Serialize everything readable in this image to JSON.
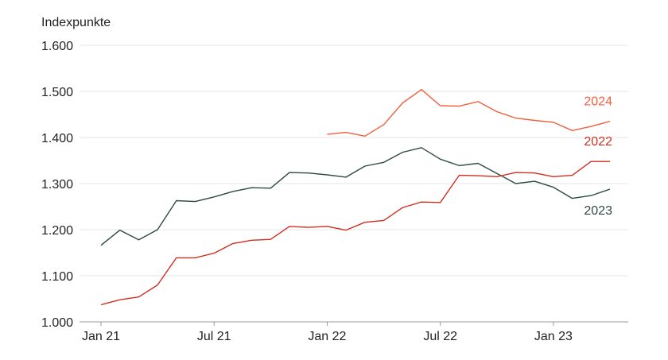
{
  "chart_data": {
    "type": "line",
    "ylabel": "Indexpunkte",
    "ylim": [
      1000,
      1600
    ],
    "yticks": [
      1000,
      1100,
      1200,
      1300,
      1400,
      1500,
      1600
    ],
    "ytick_labels": [
      "1.000",
      "1.100",
      "1.200",
      "1.300",
      "1.400",
      "1.500",
      "1.600"
    ],
    "xlim": [
      0,
      27
    ],
    "xticks": [
      {
        "x": 0,
        "label": "Jan 21"
      },
      {
        "x": 6,
        "label": "Jul 21"
      },
      {
        "x": 12,
        "label": "Jan 22"
      },
      {
        "x": 18,
        "label": "Jul 22"
      },
      {
        "x": 24,
        "label": "Jan 23"
      }
    ],
    "grid": true,
    "series": [
      {
        "name": "2023",
        "color": "#2e4a44",
        "start": 0,
        "values": [
          1166,
          1199,
          1178,
          1200,
          1263,
          1261,
          1271,
          1283,
          1291,
          1290,
          1324,
          1323,
          1319,
          1314,
          1338,
          1346,
          1368,
          1378,
          1353,
          1339,
          1344,
          1322,
          1300,
          1305,
          1292,
          1268,
          1274,
          1288
        ]
      },
      {
        "name": "2022",
        "color": "#d02f1f",
        "start": 0,
        "values": [
          1037,
          1048,
          1054,
          1080,
          1139,
          1139,
          1149,
          1170,
          1177,
          1179,
          1207,
          1205,
          1207,
          1199,
          1216,
          1220,
          1248,
          1260,
          1259,
          1318,
          1317,
          1315,
          1324,
          1323,
          1315,
          1318,
          1348,
          1348
        ]
      },
      {
        "name": "2024",
        "color": "#f0603c",
        "start": 12,
        "values": [
          1407,
          1411,
          1403,
          1428,
          1475,
          1504,
          1469,
          1468,
          1478,
          1456,
          1442,
          1437,
          1433,
          1415,
          1424,
          1435
        ]
      }
    ]
  }
}
